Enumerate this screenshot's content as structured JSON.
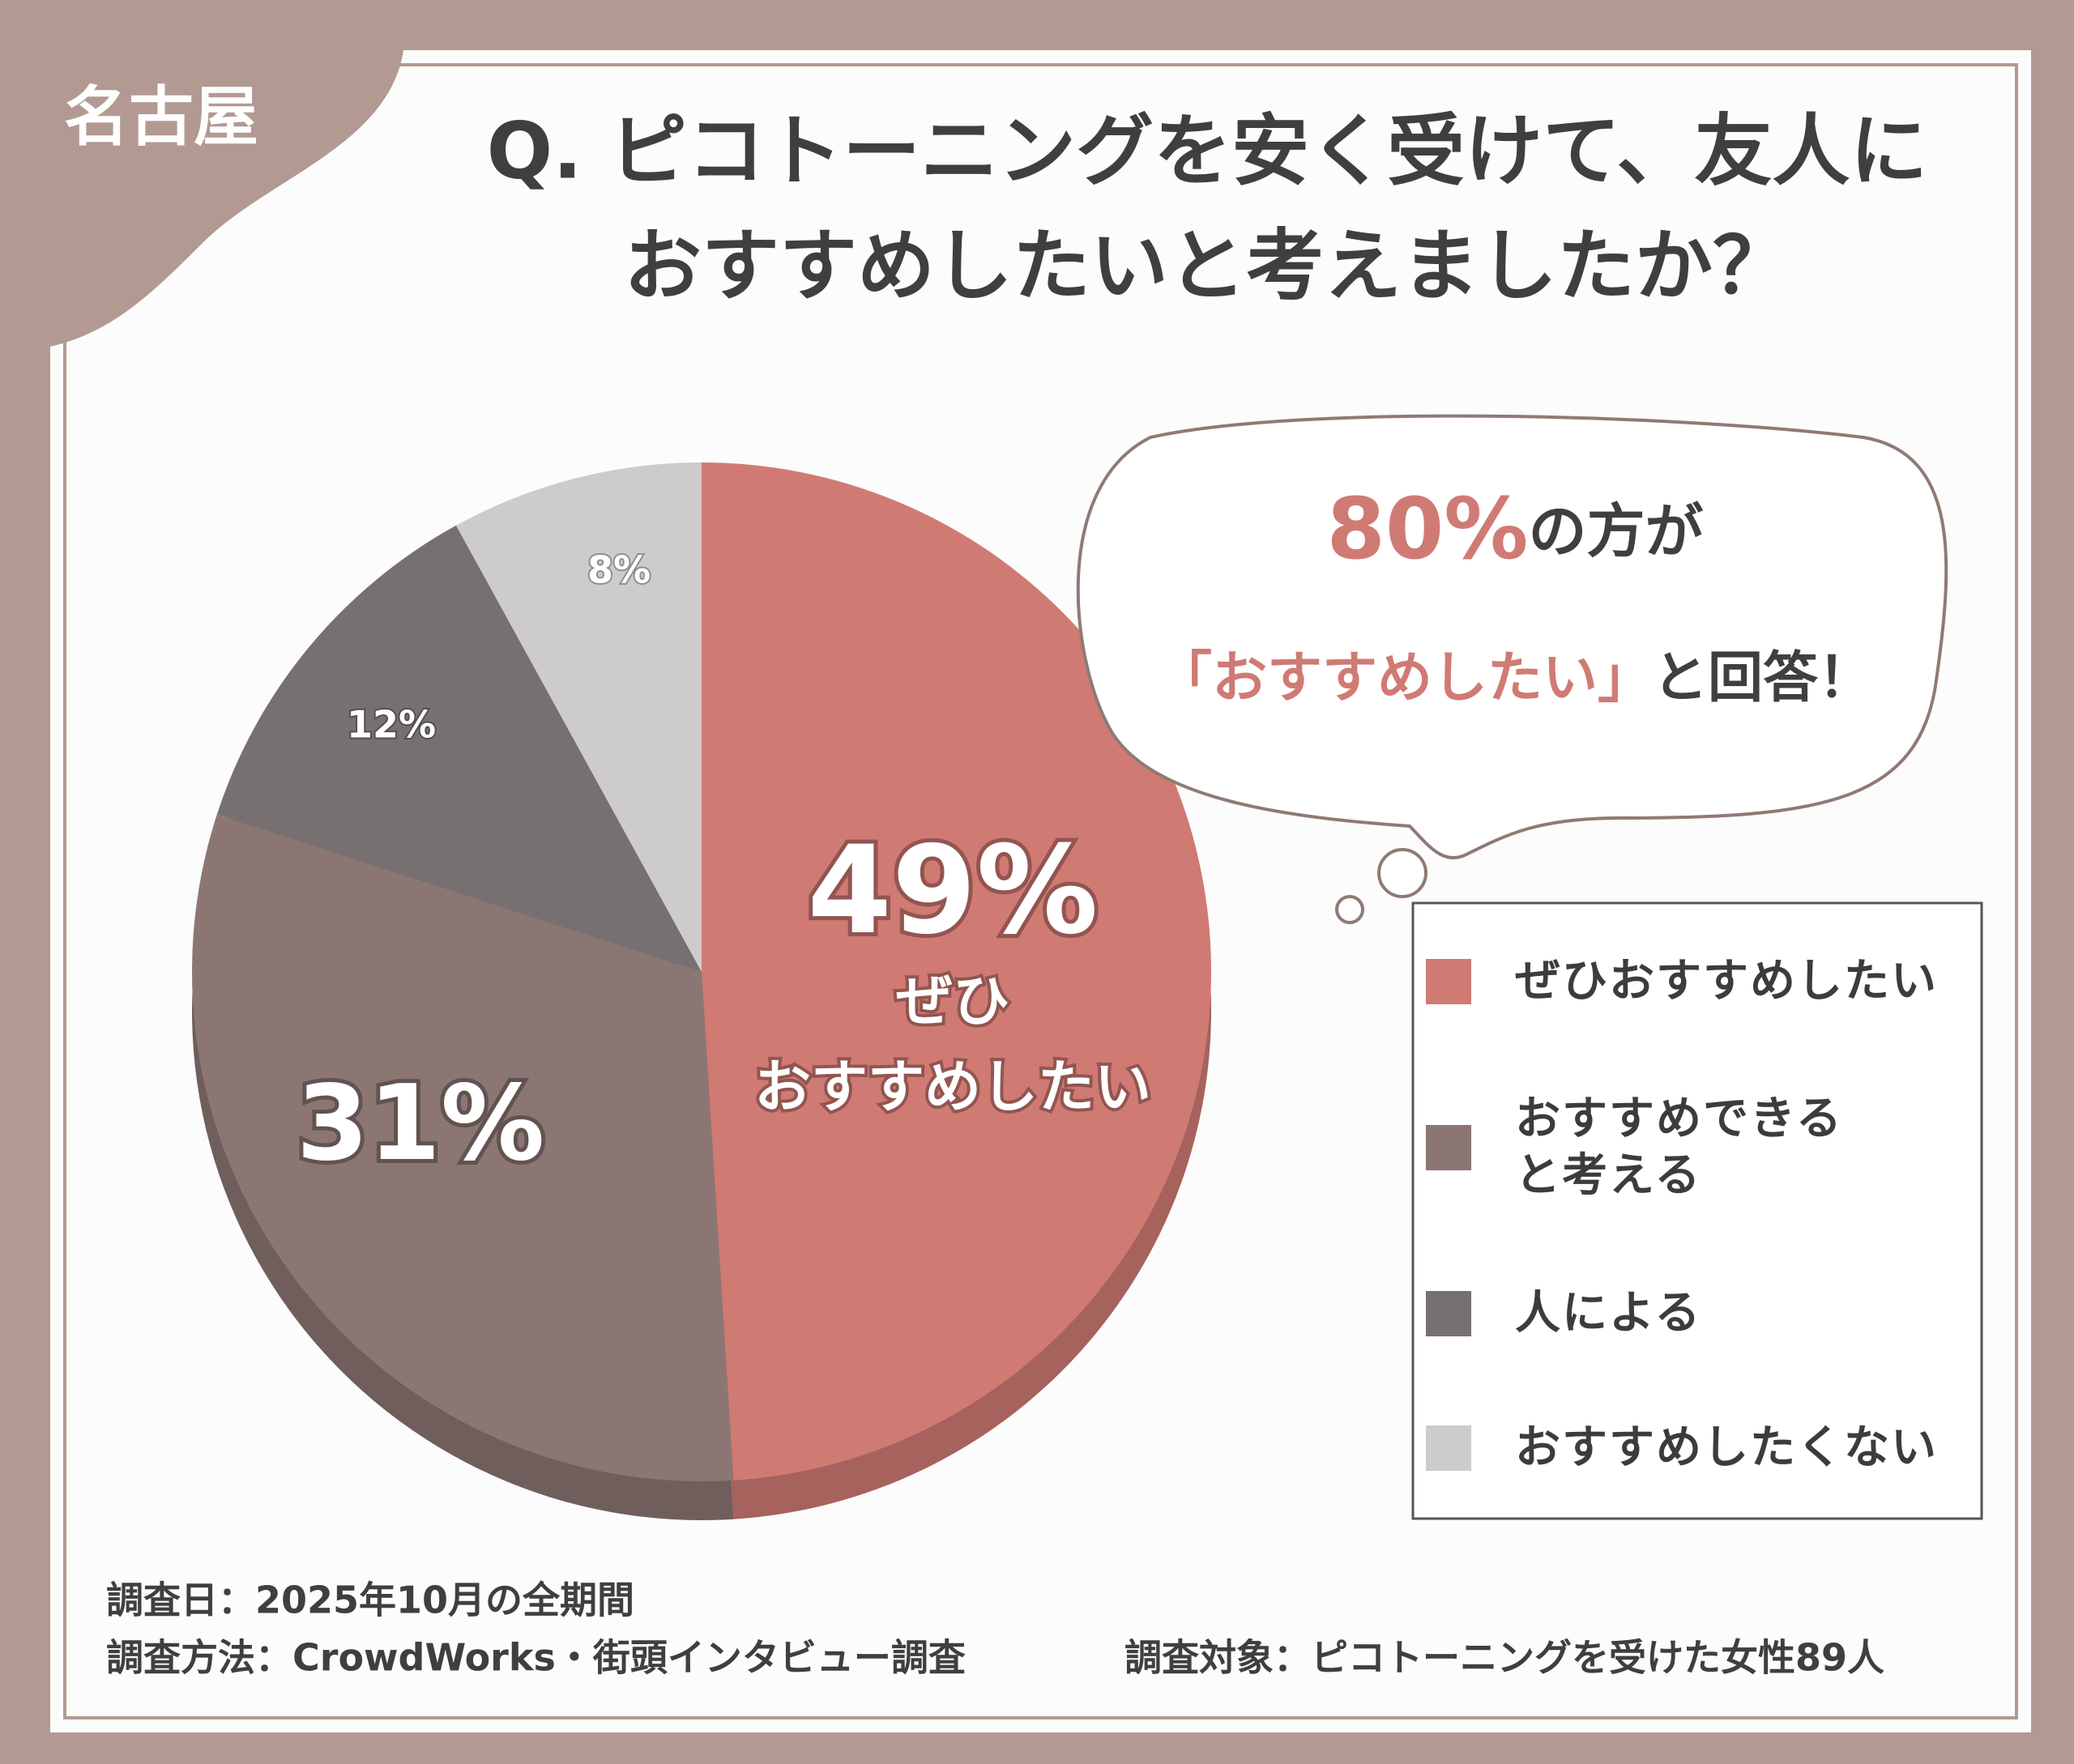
{
  "badge": "名古屋",
  "chart_data": {
    "type": "pie",
    "title_lines": [
      "Q. ピコトーニングを安く受けて、友人に",
      "おすすめしたいと考えましたか？"
    ],
    "categories": [
      "ぜひおすすめしたい",
      "おすすめできると考える",
      "人による",
      "おすすめしたくない"
    ],
    "values": [
      49,
      31,
      12,
      8
    ],
    "value_labels": [
      "49%",
      "31%",
      "12%",
      "8%"
    ],
    "colors": [
      "#d07a74",
      "#8c7673",
      "#767170",
      "#cdcbcb"
    ],
    "highlight_note_lines": [
      "ぜひ",
      "おすすめしたい"
    ],
    "legend": "right"
  },
  "callout": {
    "highlight": "80%",
    "line1_rest": "の方が",
    "quote": "「おすすめしたい」",
    "line2_rest": "と回答！"
  },
  "footer": {
    "date": "調査日：2025年10月の全期間",
    "method": "調査方法：CrowdWorks・街頭インタビュー調査",
    "target": "調査対象：ピコトーニングを受けた女性89人"
  }
}
